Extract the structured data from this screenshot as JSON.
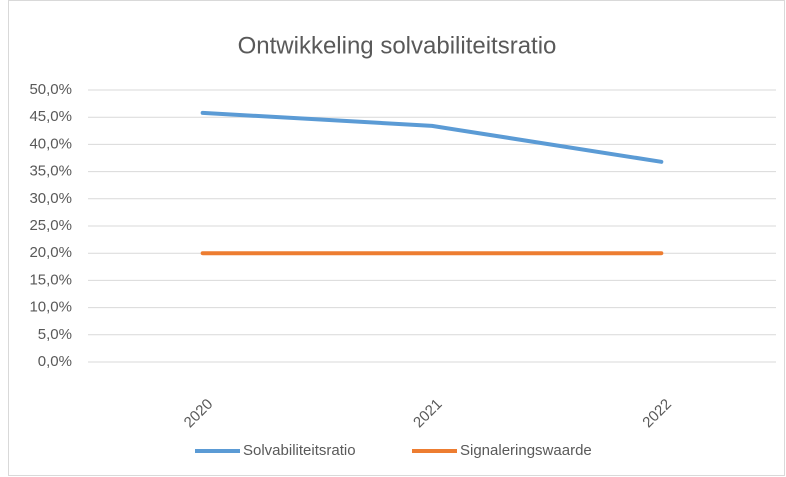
{
  "chart_data": {
    "type": "line",
    "title": "Ontwikkeling solvabiliteitsratio",
    "categories": [
      "2020",
      "2021",
      "2022"
    ],
    "series": [
      {
        "name": "Solvabiliteitsratio",
        "color": "#5b9bd5",
        "values": [
          45.8,
          43.4,
          36.8
        ]
      },
      {
        "name": "Signaleringswaarde",
        "color": "#ed7d31",
        "values": [
          20,
          20,
          20
        ]
      }
    ],
    "ylim": [
      0,
      50
    ],
    "yticks": [
      {
        "value": 0,
        "label": "0,0%"
      },
      {
        "value": 5,
        "label": "5,0%"
      },
      {
        "value": 10,
        "label": "10,0%"
      },
      {
        "value": 15,
        "label": "15,0%"
      },
      {
        "value": 20,
        "label": "20,0%"
      },
      {
        "value": 25,
        "label": "25,0%"
      },
      {
        "value": 30,
        "label": "30,0%"
      },
      {
        "value": 35,
        "label": "35,0%"
      },
      {
        "value": 40,
        "label": "40,0%"
      },
      {
        "value": 45,
        "label": "45,0%"
      },
      {
        "value": 50,
        "label": "50,0%"
      }
    ],
    "grid": true,
    "legend": "bottom"
  }
}
